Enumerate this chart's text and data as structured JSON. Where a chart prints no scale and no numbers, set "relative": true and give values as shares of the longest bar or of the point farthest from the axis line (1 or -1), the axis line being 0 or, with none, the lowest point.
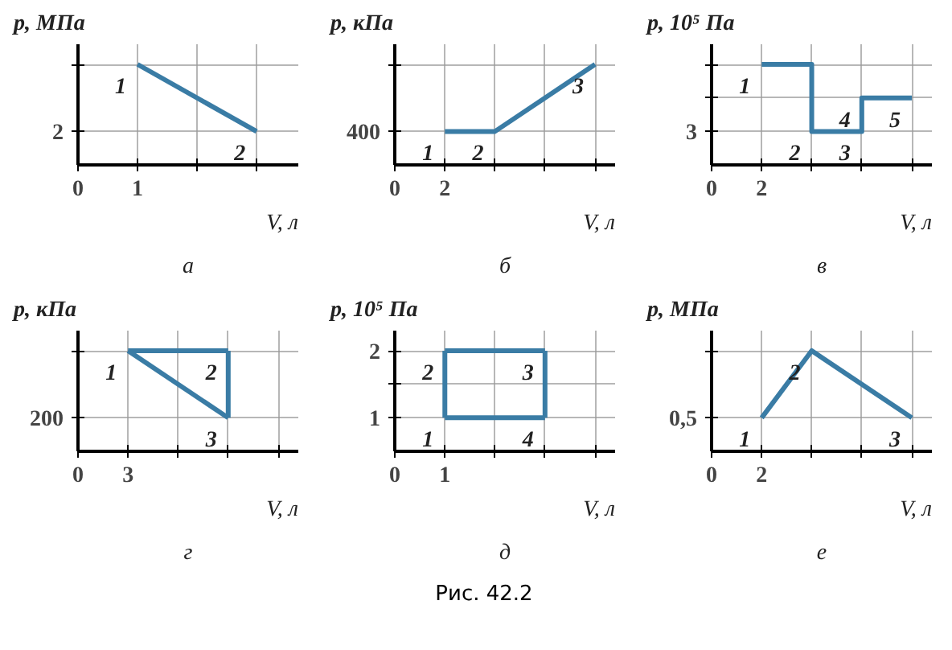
{
  "chart_data": [
    {
      "type": "line",
      "title": "а",
      "xlabel": "V, л",
      "ylabel": "p, МПа",
      "grid": true,
      "marker": "none",
      "relative": true,
      "xlim": [
        0,
        3.7
      ],
      "xticks": [
        0,
        {
          "value": 1,
          "label": "1"
        },
        {
          "value": 2,
          "label": null
        },
        {
          "value": 3,
          "label": null
        }
      ],
      "series": [
        {
          "color": "#3a7ca5",
          "x": [
            1,
            3
          ],
          "values": [
            1,
            0.333
          ]
        }
      ],
      "annotations": [
        "2",
        {
          "text": "1",
          "x": 1,
          "y": 1
        },
        {
          "text": "2",
          "x": 3,
          "y": 0.333
        }
      ]
    },
    {
      "type": "line",
      "title": "б",
      "xlabel": "V, л",
      "ylabel": "p, кПа",
      "grid": true,
      "marker": "none",
      "relative": true,
      "xlim": [
        0,
        8.8
      ],
      "xticks": [
        0,
        {
          "value": 2,
          "label": "2"
        },
        {
          "value": 4,
          "label": null
        },
        {
          "value": 6,
          "label": null
        },
        {
          "value": 8,
          "label": null
        }
      ],
      "series": [
        {
          "color": "#3a7ca5",
          "x": [
            2,
            4,
            8
          ],
          "values": [
            0.333,
            0.333,
            1
          ]
        }
      ],
      "annotations": [
        "400",
        {
          "text": "1",
          "x": 2,
          "y": 0.333
        },
        {
          "text": "2",
          "x": 4,
          "y": 0.333
        },
        {
          "text": "3",
          "x": 8,
          "y": 1
        }
      ]
    },
    {
      "type": "line",
      "title": "в",
      "xlabel": "V, л",
      "ylabel": "p, 10⁵ Па",
      "grid": true,
      "marker": "none",
      "relative": true,
      "xlim": [
        0,
        8.8
      ],
      "xticks": [
        0,
        {
          "value": 2,
          "label": "2"
        },
        {
          "value": 4,
          "label": null
        },
        {
          "value": 6,
          "label": null
        },
        {
          "value": 8,
          "label": null
        }
      ],
      "series": [
        {
          "color": "#3a7ca5",
          "x": [
            2,
            4,
            4,
            6,
            6,
            8
          ],
          "values": [
            1,
            1,
            0.333,
            0.333,
            0.667,
            0.667
          ]
        }
      ],
      "annotations": [
        "3",
        {
          "text": "1",
          "x": 2,
          "y": 1
        },
        {
          "text": "2",
          "x": 4,
          "y": 0.333
        },
        {
          "text": "3",
          "x": 6,
          "y": 0.333
        },
        {
          "text": "4",
          "x": 6,
          "y": 0.667
        },
        {
          "text": "5",
          "x": 8,
          "y": 0.667
        }
      ]
    },
    {
      "type": "line",
      "title": "г",
      "xlabel": "V, л",
      "ylabel": "p, кПа",
      "grid": true,
      "marker": "none",
      "relative": true,
      "xlim": [
        0,
        13.2
      ],
      "xticks": [
        0,
        {
          "value": 3,
          "label": "3"
        },
        {
          "value": 6,
          "label": null
        },
        {
          "value": 9,
          "label": null
        },
        {
          "value": 12,
          "label": null
        }
      ],
      "series": [
        {
          "color": "#3a7ca5",
          "x": [
            3,
            9
          ],
          "values": [
            1,
            1
          ]
        },
        {
          "color": "#3a7ca5",
          "x": [
            9,
            9
          ],
          "values": [
            1,
            0.333
          ]
        },
        {
          "color": "#3a7ca5",
          "x": [
            3,
            9
          ],
          "values": [
            1,
            0.333
          ]
        }
      ],
      "annotations": [
        "200",
        {
          "text": "1",
          "x": 3,
          "y": 1
        },
        {
          "text": "2",
          "x": 9,
          "y": 1
        },
        {
          "text": "3",
          "x": 9,
          "y": 0.333
        }
      ]
    },
    {
      "type": "line",
      "title": "д",
      "xlabel": "V, л",
      "ylabel": "p, 10⁵ Па",
      "grid": true,
      "marker": "none",
      "xlim": [
        0,
        4.4
      ],
      "ylim": [
        0.5,
        2.3
      ],
      "xticks": [
        0,
        {
          "value": 1,
          "label": "1"
        },
        {
          "value": 2,
          "label": null
        },
        {
          "value": 3,
          "label": null
        },
        {
          "value": 4,
          "label": null
        }
      ],
      "yticks": [
        1,
        {
          "value": 1.5,
          "label": null
        },
        2
      ],
      "series": [
        {
          "color": "#3a7ca5",
          "x": [
            1,
            1
          ],
          "values": [
            1,
            2
          ]
        },
        {
          "color": "#3a7ca5",
          "x": [
            1,
            3
          ],
          "values": [
            2,
            2
          ]
        },
        {
          "color": "#3a7ca5",
          "x": [
            3,
            3
          ],
          "values": [
            2,
            1
          ]
        },
        {
          "color": "#3a7ca5",
          "x": [
            1,
            3
          ],
          "values": [
            1,
            1
          ]
        }
      ],
      "annotations": [
        {
          "text": "1",
          "x": 1,
          "y": 1
        },
        {
          "text": "2",
          "x": 1,
          "y": 2
        },
        {
          "text": "3",
          "x": 3,
          "y": 2
        },
        {
          "text": "4",
          "x": 3,
          "y": 1
        },
        "Рис. 42.2"
      ]
    },
    {
      "type": "line",
      "title": "е",
      "xlabel": "V, л",
      "ylabel": "p, МПа",
      "grid": true,
      "marker": "none",
      "relative": true,
      "xlim": [
        0,
        8.8
      ],
      "xticks": [
        0,
        {
          "value": 2,
          "label": "2"
        },
        {
          "value": 4,
          "label": null
        },
        {
          "value": 6,
          "label": null
        },
        {
          "value": 8,
          "label": null
        }
      ],
      "series": [
        {
          "color": "#3a7ca5",
          "x": [
            2,
            4,
            8
          ],
          "values": [
            0.333,
            1,
            0.333
          ]
        }
      ],
      "annotations": [
        "0,5",
        {
          "text": "1",
          "x": 2,
          "y": 0.333
        },
        {
          "text": "2",
          "x": 4,
          "y": 1
        },
        {
          "text": "3",
          "x": 8,
          "y": 0.333
        }
      ]
    }
  ]
}
